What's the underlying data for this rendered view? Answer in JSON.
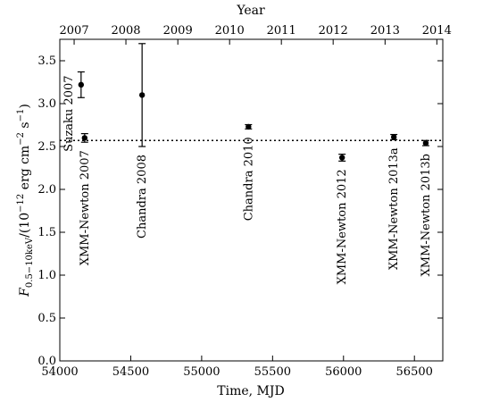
{
  "chart_data": {
    "type": "scatter",
    "title": "",
    "xlabel": "Time, MJD",
    "ylabel": "F_{0.5–10 keV}/(10^{-12} erg cm^{-2} s^{-1})",
    "ylabel_main": "F",
    "ylabel_sub": "0.5−10keV",
    "ylabel_rest": "/(10",
    "ylabel_exp1": "−12",
    "ylabel_mid": " erg cm",
    "ylabel_exp2": "−2",
    "ylabel_mid2": " s",
    "ylabel_exp3": "−1",
    "ylabel_end": ")",
    "top_xlabel": "Year",
    "xlim": [
      54000,
      56700
    ],
    "ylim": [
      0.0,
      3.75
    ],
    "x_ticks": [
      "54000",
      "54500",
      "55000",
      "55500",
      "56000",
      "56500"
    ],
    "x_tick_values": [
      54000,
      54500,
      55000,
      55500,
      56000,
      56500
    ],
    "y_ticks": [
      "0.0",
      "0.5",
      "1.0",
      "1.5",
      "2.0",
      "2.5",
      "3.0",
      "3.5"
    ],
    "y_tick_values": [
      0.0,
      0.5,
      1.0,
      1.5,
      2.0,
      2.5,
      3.0,
      3.5
    ],
    "top_ticks": [
      "2007",
      "2008",
      "2009",
      "2010",
      "2011",
      "2012",
      "2013",
      "2014"
    ],
    "top_tick_values": [
      54101,
      54466,
      54832,
      55197,
      55562,
      55927,
      56293,
      56658
    ],
    "reference_line": 2.57,
    "grid": false,
    "points": [
      {
        "label": "Suzaku 2007",
        "x": 54150,
        "y": 3.22,
        "err": 0.15
      },
      {
        "label": "XMM-Newton 2007",
        "x": 54175,
        "y": 2.6,
        "err": 0.05
      },
      {
        "label": "Chandra 2008",
        "x": 54580,
        "y": 3.1,
        "err": 0.6
      },
      {
        "label": "Chandra 2010",
        "x": 55330,
        "y": 2.73,
        "err": 0.025
      },
      {
        "label": "XMM-Newton 2012",
        "x": 55990,
        "y": 2.37,
        "err": 0.04
      },
      {
        "label": "XMM-Newton 2013a",
        "x": 56355,
        "y": 2.61,
        "err": 0.03
      },
      {
        "label": "XMM-Newton 2013b",
        "x": 56580,
        "y": 2.54,
        "err": 0.03
      }
    ]
  }
}
